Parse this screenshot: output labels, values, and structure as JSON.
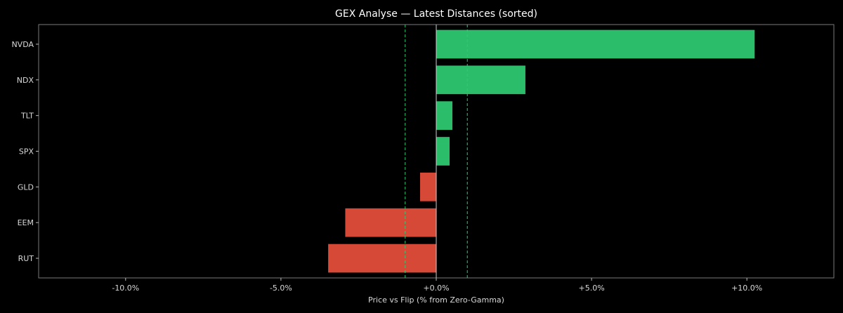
{
  "chart_data": {
    "type": "bar",
    "orientation": "horizontal",
    "title": "GEX Analyse — Latest Distances (sorted)",
    "xlabel": "Price vs Flip (% from Zero-Gamma)",
    "ylabel": "",
    "categories": [
      "NVDA",
      "NDX",
      "TLT",
      "SPX",
      "GLD",
      "EEM",
      "RUT"
    ],
    "values": [
      10.25,
      2.87,
      0.52,
      0.43,
      -0.52,
      -2.93,
      -3.48
    ],
    "xlim": [
      -12.8,
      12.8
    ],
    "xticks": [
      -10,
      -5,
      0,
      5,
      10
    ],
    "xtick_labels": [
      "-10.0%",
      "-5.0%",
      "+0.0%",
      "+5.0%",
      "+10.0%"
    ],
    "reference_lines": [
      {
        "x": -1.0,
        "style": "dashed",
        "color": "#2ecc71"
      },
      {
        "x": 1.0,
        "style": "dashed",
        "color": "#2ecc71"
      },
      {
        "x": 0.0,
        "style": "solid",
        "color": "#cccccc"
      }
    ],
    "positive_color": "#2bbd6a",
    "negative_color": "#d64937",
    "background": "#000000",
    "grid": false
  }
}
